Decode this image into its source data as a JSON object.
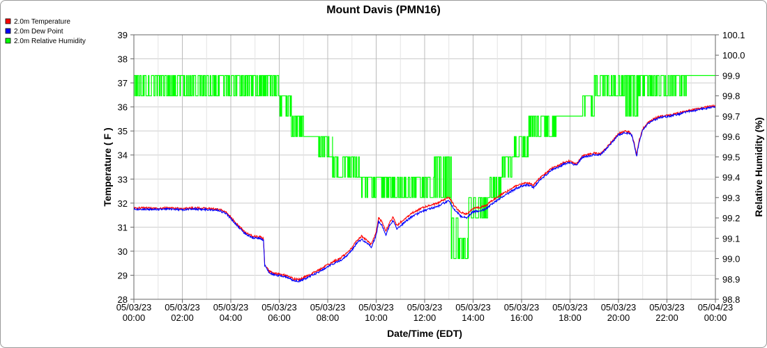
{
  "chart_data": {
    "type": "line",
    "title": "Mount Davis (PMN16)",
    "xlabel": "Date/Time (EDT)",
    "ylabel_left": "Temperature ( F )",
    "ylabel_right": "Relative Humidity (%)",
    "ylim_left": [
      28,
      39
    ],
    "ylim_right": [
      98.8,
      100.1
    ],
    "xlim_hours": [
      0,
      24
    ],
    "grid": true,
    "legend_position": "top-left",
    "x_ticks": [
      {
        "date": "05/03/23",
        "time": "00:00"
      },
      {
        "date": "05/03/23",
        "time": "02:00"
      },
      {
        "date": "05/03/23",
        "time": "04:00"
      },
      {
        "date": "05/03/23",
        "time": "06:00"
      },
      {
        "date": "05/03/23",
        "time": "08:00"
      },
      {
        "date": "05/03/23",
        "time": "10:00"
      },
      {
        "date": "05/03/23",
        "time": "12:00"
      },
      {
        "date": "05/03/23",
        "time": "14:00"
      },
      {
        "date": "05/03/23",
        "time": "16:00"
      },
      {
        "date": "05/03/23",
        "time": "18:00"
      },
      {
        "date": "05/03/23",
        "time": "20:00"
      },
      {
        "date": "05/03/23",
        "time": "22:00"
      },
      {
        "date": "05/04/23",
        "time": "00:00"
      }
    ],
    "y_ticks_left": [
      "28",
      "29",
      "30",
      "31",
      "32",
      "33",
      "34",
      "35",
      "36",
      "37",
      "38",
      "39"
    ],
    "y_ticks_right": [
      "98.8",
      "98.9",
      "99.0",
      "99.1",
      "99.2",
      "99.3",
      "99.4",
      "99.5",
      "99.6",
      "99.7",
      "99.8",
      "99.9",
      "100.0",
      "100.1"
    ],
    "series": [
      {
        "name": "2.0m Temperature",
        "axis": "left",
        "color": "#ff0000",
        "x_hours": [
          0,
          0.5,
          1,
          1.5,
          2,
          2.5,
          3,
          3.5,
          3.8,
          4,
          4.3,
          4.6,
          4.9,
          5.2,
          5.35,
          5.4,
          5.6,
          5.8,
          6,
          6.3,
          6.6,
          6.8,
          7,
          7.3,
          7.6,
          7.9,
          8.2,
          8.5,
          8.8,
          9,
          9.2,
          9.4,
          9.6,
          9.8,
          10,
          10.1,
          10.25,
          10.4,
          10.55,
          10.7,
          10.85,
          11,
          11.25,
          11.5,
          11.75,
          12,
          12.25,
          12.5,
          12.75,
          13,
          13.25,
          13.5,
          13.75,
          14,
          14.25,
          14.5,
          14.75,
          15,
          15.25,
          15.5,
          15.75,
          16,
          16.25,
          16.5,
          16.75,
          17,
          17.25,
          17.5,
          17.75,
          18,
          18.25,
          18.5,
          18.75,
          19,
          19.25,
          19.5,
          19.75,
          20,
          20.25,
          20.45,
          20.55,
          20.65,
          20.75,
          20.85,
          21,
          21.25,
          21.5,
          21.75,
          22,
          22.25,
          22.5,
          22.75,
          23,
          23.25,
          23.5,
          23.75,
          24
        ],
        "values": [
          31.8,
          31.8,
          31.78,
          31.8,
          31.77,
          31.8,
          31.78,
          31.75,
          31.62,
          31.4,
          31.08,
          30.78,
          30.62,
          30.6,
          30.52,
          29.45,
          29.15,
          29.08,
          29.05,
          28.98,
          28.85,
          28.82,
          28.9,
          29.05,
          29.2,
          29.38,
          29.55,
          29.7,
          29.92,
          30.15,
          30.45,
          30.62,
          30.48,
          30.28,
          30.8,
          31.38,
          31.2,
          30.82,
          31.2,
          31.42,
          31.05,
          31.2,
          31.4,
          31.6,
          31.72,
          31.85,
          31.92,
          31.98,
          32.12,
          32.25,
          31.85,
          31.6,
          31.55,
          31.78,
          31.82,
          31.88,
          32.08,
          32.25,
          32.4,
          32.55,
          32.7,
          32.8,
          32.85,
          32.75,
          33.05,
          33.25,
          33.45,
          33.55,
          33.7,
          33.75,
          33.62,
          33.95,
          34.02,
          34.08,
          34.05,
          34.3,
          34.6,
          34.88,
          34.98,
          34.95,
          34.85,
          34.5,
          33.98,
          34.6,
          35.08,
          35.38,
          35.52,
          35.62,
          35.65,
          35.7,
          35.75,
          35.82,
          35.88,
          35.92,
          35.98,
          36.02,
          36.05
        ]
      },
      {
        "name": "2.0m Dew Point",
        "axis": "left",
        "color": "#0000ff",
        "x_hours": [
          0,
          0.5,
          1,
          1.5,
          2,
          2.5,
          3,
          3.5,
          3.8,
          4,
          4.3,
          4.6,
          4.9,
          5.2,
          5.35,
          5.4,
          5.6,
          5.8,
          6,
          6.3,
          6.6,
          6.8,
          7,
          7.3,
          7.6,
          7.9,
          8.2,
          8.5,
          8.8,
          9,
          9.2,
          9.4,
          9.6,
          9.8,
          10,
          10.1,
          10.25,
          10.4,
          10.55,
          10.7,
          10.85,
          11,
          11.25,
          11.5,
          11.75,
          12,
          12.25,
          12.5,
          12.75,
          13,
          13.25,
          13.5,
          13.75,
          14,
          14.25,
          14.5,
          14.75,
          15,
          15.25,
          15.5,
          15.75,
          16,
          16.25,
          16.5,
          16.75,
          17,
          17.25,
          17.5,
          17.75,
          18,
          18.25,
          18.5,
          18.75,
          19,
          19.25,
          19.5,
          19.75,
          20,
          20.25,
          20.45,
          20.55,
          20.65,
          20.75,
          20.85,
          21,
          21.25,
          21.5,
          21.75,
          22,
          22.25,
          22.5,
          22.75,
          23,
          23.25,
          23.5,
          23.75,
          24
        ],
        "values": [
          31.75,
          31.75,
          31.73,
          31.75,
          31.72,
          31.75,
          31.73,
          31.7,
          31.57,
          31.35,
          31.02,
          30.72,
          30.56,
          30.54,
          30.46,
          29.4,
          29.1,
          29.02,
          28.98,
          28.92,
          28.78,
          28.75,
          28.82,
          28.97,
          29.12,
          29.3,
          29.46,
          29.6,
          29.82,
          30.04,
          30.34,
          30.5,
          30.36,
          30.16,
          30.66,
          31.24,
          31.06,
          30.68,
          31.06,
          31.28,
          30.92,
          31.06,
          31.26,
          31.46,
          31.58,
          31.7,
          31.78,
          31.84,
          31.98,
          32.1,
          31.7,
          31.45,
          31.4,
          31.64,
          31.68,
          31.74,
          31.94,
          32.12,
          32.28,
          32.44,
          32.6,
          32.7,
          32.76,
          32.66,
          32.96,
          33.16,
          33.38,
          33.48,
          33.63,
          33.68,
          33.56,
          33.9,
          33.96,
          34.02,
          34.0,
          34.25,
          34.55,
          34.83,
          34.93,
          34.9,
          34.8,
          34.45,
          33.93,
          34.55,
          35.03,
          35.33,
          35.47,
          35.57,
          35.6,
          35.65,
          35.7,
          35.77,
          35.83,
          35.87,
          35.93,
          35.97,
          36.0
        ]
      },
      {
        "name": "2.0m Relative Humidity",
        "axis": "right",
        "color": "#00ff00",
        "segments": [
          {
            "from": 0,
            "to": 6,
            "low": 99.8,
            "high": 99.9
          },
          {
            "from": 6,
            "to": 6.5,
            "low": 99.7,
            "high": 99.8
          },
          {
            "from": 6.5,
            "to": 7,
            "low": 99.6,
            "high": 99.7
          },
          {
            "from": 7,
            "to": 7.6,
            "low": 99.6,
            "high": 99.6
          },
          {
            "from": 7.6,
            "to": 8.2,
            "low": 99.5,
            "high": 99.6
          },
          {
            "from": 8.2,
            "to": 9.3,
            "low": 99.4,
            "high": 99.5
          },
          {
            "from": 9.3,
            "to": 10.5,
            "low": 99.3,
            "high": 99.4
          },
          {
            "from": 10.5,
            "to": 12.4,
            "low": 99.3,
            "high": 99.4
          },
          {
            "from": 12.4,
            "to": 13.1,
            "low": 99.3,
            "high": 99.5
          },
          {
            "from": 13.1,
            "to": 13.4,
            "low": 99.0,
            "high": 99.2
          },
          {
            "from": 13.4,
            "to": 13.8,
            "low": 99.0,
            "high": 99.1
          },
          {
            "from": 13.8,
            "to": 14.6,
            "low": 99.2,
            "high": 99.3
          },
          {
            "from": 14.6,
            "to": 15.2,
            "low": 99.3,
            "high": 99.4
          },
          {
            "from": 15.2,
            "to": 15.7,
            "low": 99.4,
            "high": 99.5
          },
          {
            "from": 15.7,
            "to": 16.3,
            "low": 99.5,
            "high": 99.6
          },
          {
            "from": 16.3,
            "to": 17.5,
            "low": 99.6,
            "high": 99.7
          },
          {
            "from": 17.5,
            "to": 18.5,
            "low": 99.7,
            "high": 99.7
          },
          {
            "from": 18.5,
            "to": 19,
            "low": 99.7,
            "high": 99.8
          },
          {
            "from": 19,
            "to": 20.3,
            "low": 99.8,
            "high": 99.9
          },
          {
            "from": 20.3,
            "to": 20.8,
            "low": 99.7,
            "high": 99.9
          },
          {
            "from": 20.8,
            "to": 22.8,
            "low": 99.8,
            "high": 99.9
          },
          {
            "from": 22.8,
            "to": 24,
            "low": 99.9,
            "high": 99.9
          }
        ]
      }
    ]
  }
}
